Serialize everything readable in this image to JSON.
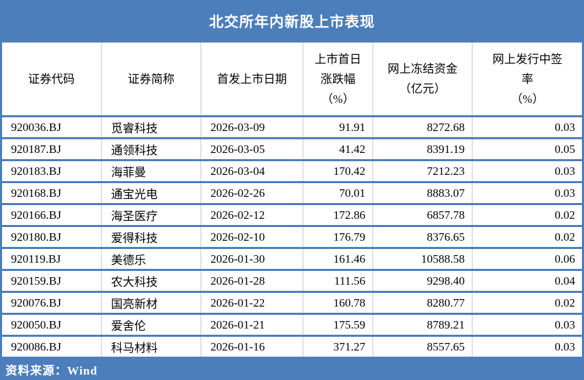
{
  "title": "北交所年内新股上市表现",
  "footer": {
    "source": "资料来源：Wind"
  },
  "colors": {
    "accent": "#4b7ebb",
    "column_divider": "#e2e2e2",
    "title_text": "#ffffff",
    "body_text": "#000000"
  },
  "chart_data": {
    "type": "table",
    "title": "北交所年内新股上市表现",
    "source": "Wind",
    "columns": [
      {
        "id": "code",
        "label": "证券代码",
        "label_lines": [
          "证券代码"
        ],
        "align": "left"
      },
      {
        "id": "name",
        "label": "证券简称",
        "label_lines": [
          "证券简称"
        ],
        "align": "left"
      },
      {
        "id": "date",
        "label": "首发上市日期",
        "label_lines": [
          "首发上市日期"
        ],
        "align": "left"
      },
      {
        "id": "chg",
        "label": "上市首日涨跌幅（%）",
        "label_lines": [
          "上市首日",
          "涨跌幅",
          "（%）"
        ],
        "align": "right"
      },
      {
        "id": "frozen",
        "label": "网上冻结资金（亿元）",
        "label_lines": [
          "网上冻结资金",
          "（亿元）"
        ],
        "align": "right"
      },
      {
        "id": "rate",
        "label": "网上发行中签率（%）",
        "label_lines": [
          "网上发行中签",
          "率",
          "（%）"
        ],
        "align": "right"
      }
    ],
    "rows": [
      {
        "code": "920036.BJ",
        "name": "觅睿科技",
        "date": "2026-03-09",
        "chg": "91.91",
        "frozen": "8272.68",
        "rate": "0.03"
      },
      {
        "code": "920187.BJ",
        "name": "通领科技",
        "date": "2026-03-05",
        "chg": "41.42",
        "frozen": "8391.19",
        "rate": "0.05"
      },
      {
        "code": "920183.BJ",
        "name": "海菲曼",
        "date": "2026-03-04",
        "chg": "170.42",
        "frozen": "7212.23",
        "rate": "0.03"
      },
      {
        "code": "920168.BJ",
        "name": "通宝光电",
        "date": "2026-02-26",
        "chg": "70.01",
        "frozen": "8883.07",
        "rate": "0.03"
      },
      {
        "code": "920166.BJ",
        "name": "海圣医疗",
        "date": "2026-02-12",
        "chg": "172.86",
        "frozen": "6857.78",
        "rate": "0.02"
      },
      {
        "code": "920180.BJ",
        "name": "爱得科技",
        "date": "2026-02-10",
        "chg": "176.79",
        "frozen": "8376.65",
        "rate": "0.02"
      },
      {
        "code": "920119.BJ",
        "name": "美德乐",
        "date": "2026-01-30",
        "chg": "161.46",
        "frozen": "10588.58",
        "rate": "0.06"
      },
      {
        "code": "920159.BJ",
        "name": "农大科技",
        "date": "2026-01-28",
        "chg": "111.56",
        "frozen": "9298.40",
        "rate": "0.04"
      },
      {
        "code": "920076.BJ",
        "name": "国亮新材",
        "date": "2026-01-22",
        "chg": "160.78",
        "frozen": "8280.77",
        "rate": "0.02"
      },
      {
        "code": "920050.BJ",
        "name": "爱舍伦",
        "date": "2026-01-21",
        "chg": "175.59",
        "frozen": "8789.21",
        "rate": "0.03"
      },
      {
        "code": "920086.BJ",
        "name": "科马材料",
        "date": "2026-01-16",
        "chg": "371.27",
        "frozen": "8557.65",
        "rate": "0.03"
      }
    ]
  }
}
